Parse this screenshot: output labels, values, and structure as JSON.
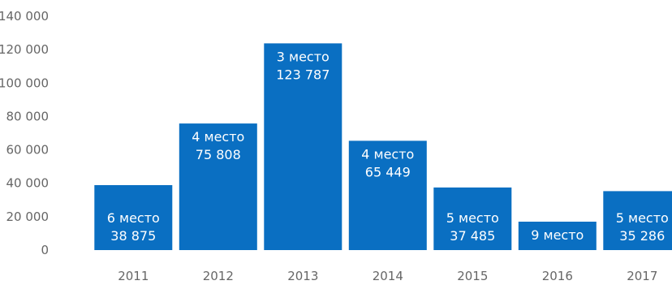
{
  "chart_data": {
    "type": "bar",
    "title": "",
    "xlabel": "",
    "ylabel": "",
    "ylim": [
      0,
      140000
    ],
    "y_ticks": [
      "0",
      "20 000",
      "40 000",
      "60 000",
      "80 000",
      "100 000",
      "120 000",
      "140 000"
    ],
    "y_tick_values": [
      0,
      20000,
      40000,
      60000,
      80000,
      100000,
      120000,
      140000
    ],
    "grid": false,
    "legend": "none",
    "bar_color": "#0a6fc2",
    "label_color": "#ffffff",
    "tick_color": "#666666",
    "categories": [
      "2011",
      "2012",
      "2013",
      "2014",
      "2015",
      "2016",
      "2017"
    ],
    "values": [
      38875,
      75808,
      123787,
      65449,
      37485,
      17000,
      35286
    ],
    "data_labels": [
      [
        "6 место",
        "38 875"
      ],
      [
        "4 место",
        "75 808"
      ],
      [
        "3 место",
        "123 787"
      ],
      [
        "4 место",
        "65 449"
      ],
      [
        "5 место",
        "37 485"
      ],
      [
        "9 место"
      ],
      [
        "5 место",
        "35 286"
      ]
    ]
  }
}
